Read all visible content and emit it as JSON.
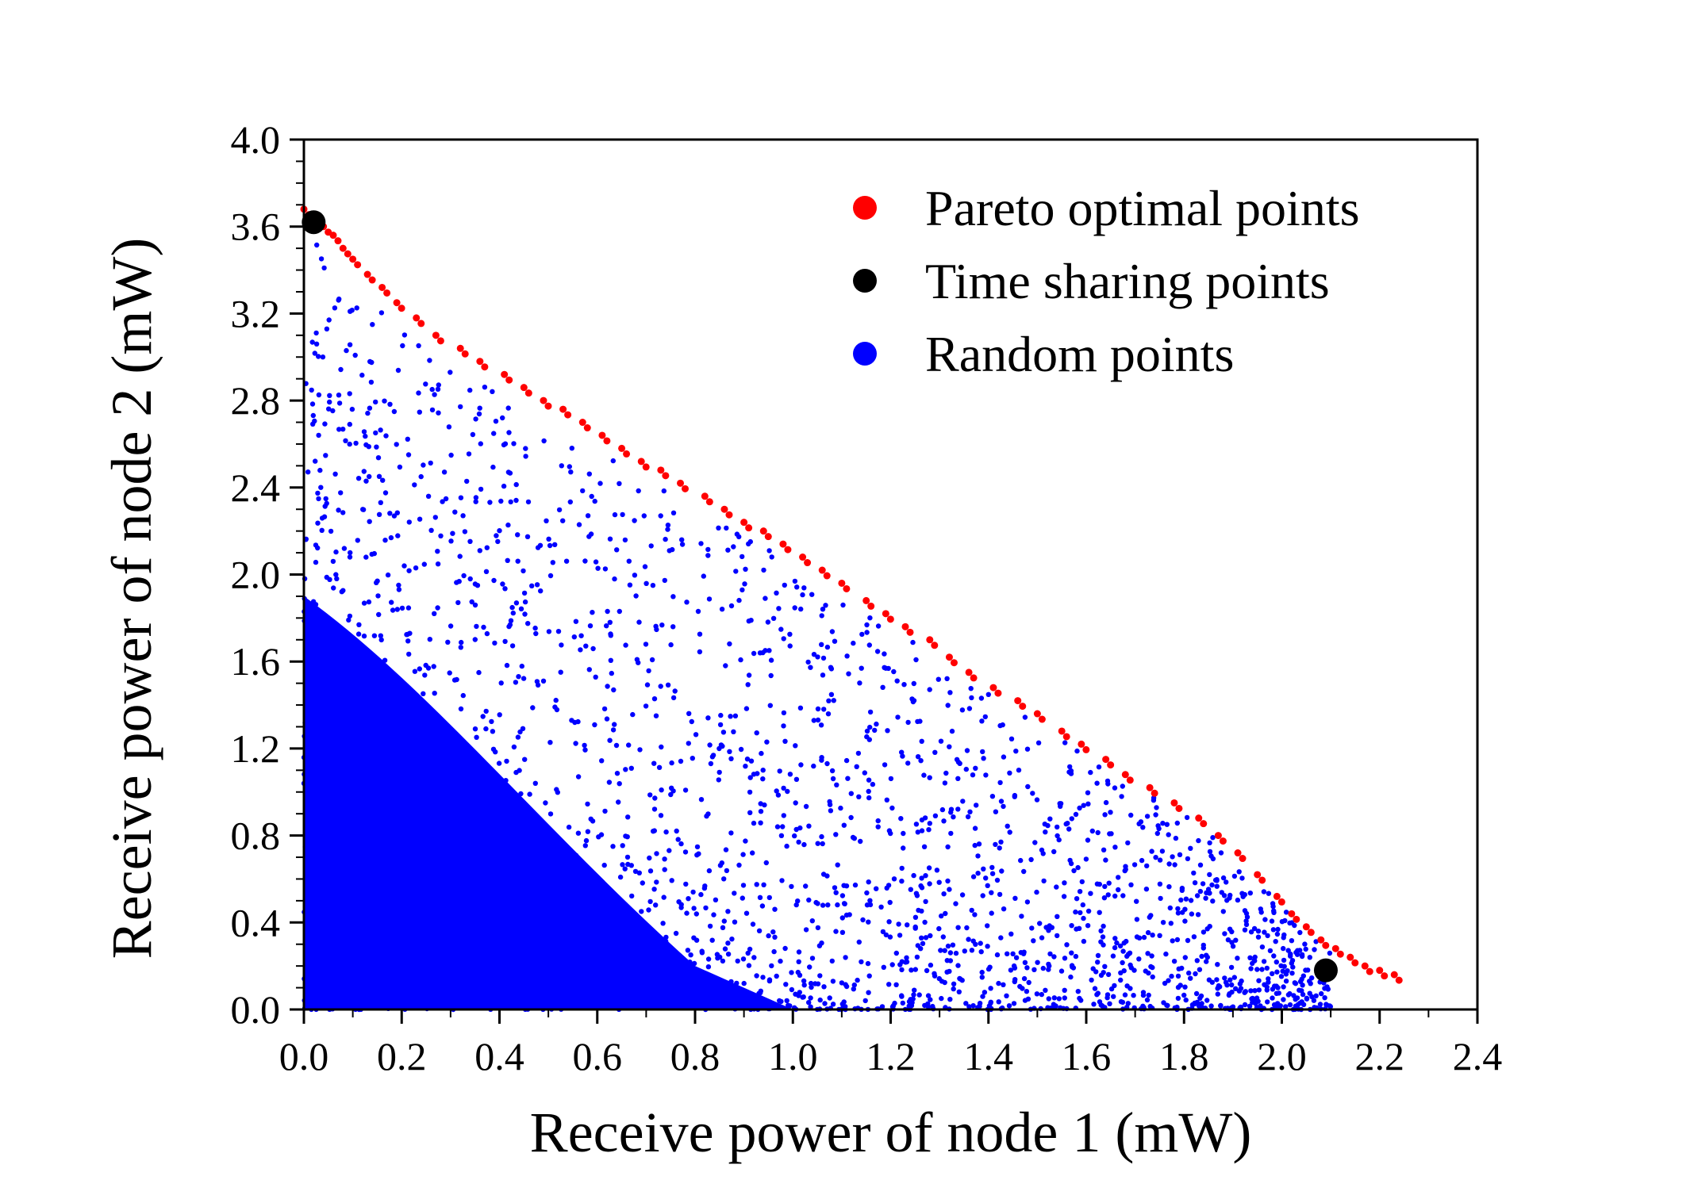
{
  "chart_data": {
    "type": "scatter",
    "xlabel": "Receive power of node 1 (mW)",
    "ylabel": "Receive power of node 2 (mW)",
    "xlim": [
      0.0,
      2.4
    ],
    "ylim": [
      0.0,
      4.0
    ],
    "x_ticks": [
      "0.0",
      "0.2",
      "0.4",
      "0.6",
      "0.8",
      "1.0",
      "1.2",
      "1.4",
      "1.6",
      "1.8",
      "2.0",
      "2.2",
      "2.4"
    ],
    "y_ticks": [
      "0.0",
      "0.4",
      "0.8",
      "1.2",
      "1.6",
      "2.0",
      "2.4",
      "2.8",
      "3.2",
      "3.6",
      "4.0"
    ],
    "grid": false,
    "legend_position": "top-right",
    "series": [
      {
        "name": "Pareto optimal points",
        "color": "#ff0000",
        "x": [
          0.0,
          0.02,
          0.04,
          0.06,
          0.08,
          0.1,
          0.13,
          0.16,
          0.19,
          0.23,
          0.27,
          0.32,
          0.36,
          0.41,
          0.45,
          0.49,
          0.53,
          0.57,
          0.61,
          0.65,
          0.69,
          0.73,
          0.77,
          0.82,
          0.86,
          0.9,
          0.94,
          0.98,
          1.02,
          1.06,
          1.1,
          1.15,
          1.19,
          1.23,
          1.28,
          1.32,
          1.36,
          1.41,
          1.46,
          1.5,
          1.55,
          1.59,
          1.64,
          1.68,
          1.73,
          1.78,
          1.83,
          1.87,
          1.91,
          1.95,
          1.99,
          2.02,
          2.05,
          2.08,
          2.11,
          2.14,
          2.17,
          2.2,
          2.23
        ],
        "y": [
          3.68,
          3.64,
          3.6,
          3.56,
          3.5,
          3.45,
          3.38,
          3.32,
          3.25,
          3.18,
          3.1,
          3.04,
          2.98,
          2.92,
          2.86,
          2.8,
          2.76,
          2.7,
          2.64,
          2.58,
          2.52,
          2.48,
          2.42,
          2.36,
          2.3,
          2.24,
          2.2,
          2.14,
          2.08,
          2.02,
          1.96,
          1.88,
          1.82,
          1.76,
          1.7,
          1.62,
          1.55,
          1.48,
          1.42,
          1.36,
          1.28,
          1.22,
          1.15,
          1.08,
          1.02,
          0.95,
          0.88,
          0.8,
          0.72,
          0.62,
          0.52,
          0.44,
          0.38,
          0.32,
          0.28,
          0.24,
          0.2,
          0.18,
          0.16
        ]
      },
      {
        "name": "Time sharing points",
        "color": "#000000",
        "x": [
          0.02,
          2.09
        ],
        "y": [
          3.62,
          0.18
        ]
      },
      {
        "name": "Random points",
        "color": "#0000ff",
        "count": 2500,
        "region": "uniform density region under the Pareto boundary, densest near origin"
      }
    ]
  }
}
